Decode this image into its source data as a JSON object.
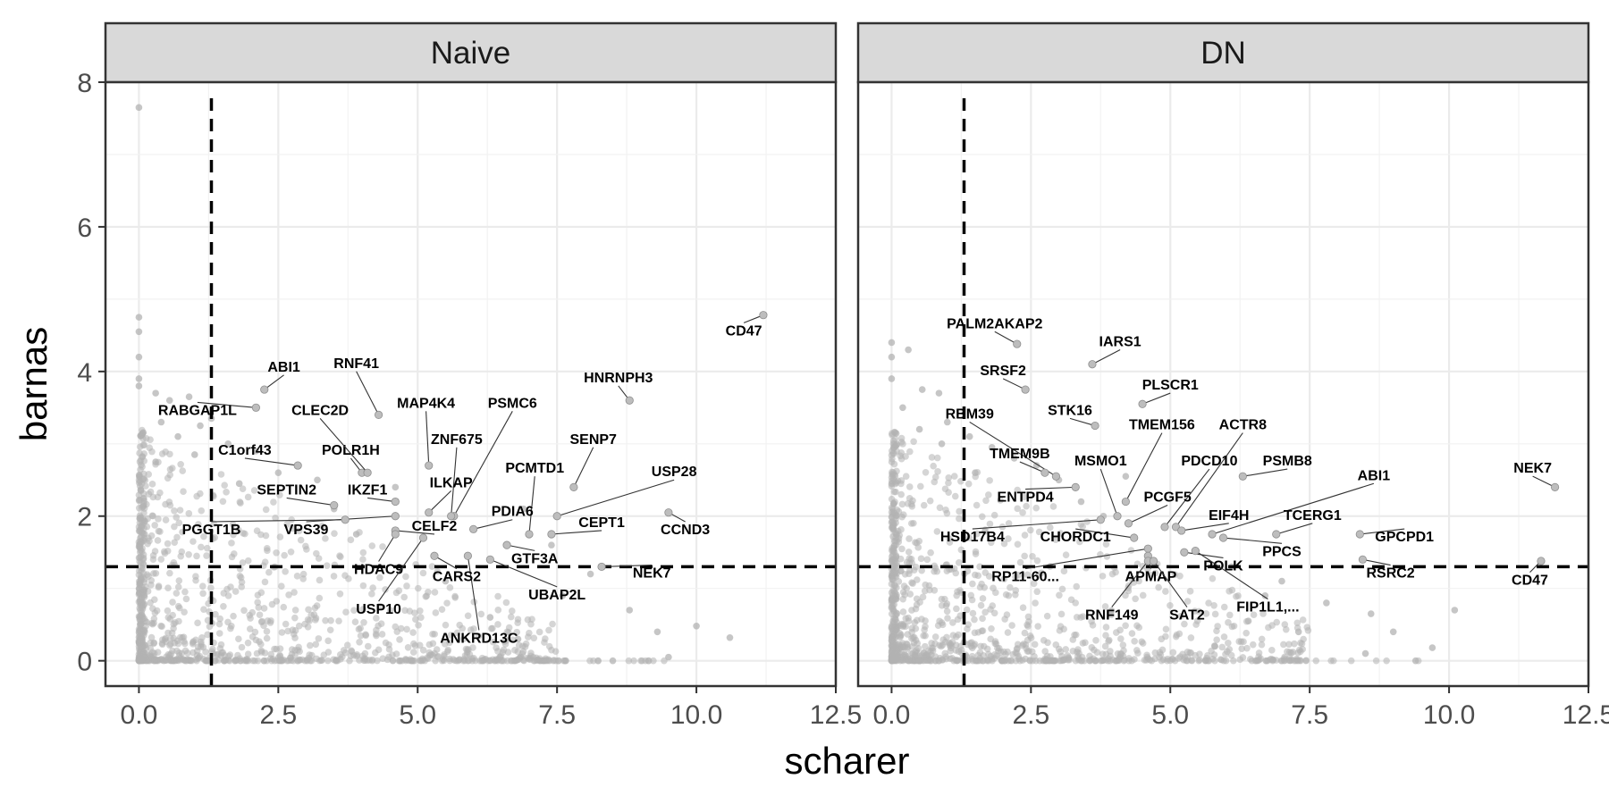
{
  "chart_data": {
    "type": "scatter",
    "xlabel": "scharer",
    "ylabel": "barnas",
    "xlim": [
      -0.6,
      12.5
    ],
    "ylim": [
      -0.35,
      8.0
    ],
    "x_ticks": [
      0.0,
      2.5,
      5.0,
      7.5,
      10.0,
      12.5
    ],
    "x_tick_labels": [
      "0.0",
      "2.5",
      "5.0",
      "7.5",
      "10.0",
      "12.5"
    ],
    "y_ticks": [
      0,
      2,
      4,
      6,
      8
    ],
    "y_tick_labels": [
      "0",
      "2",
      "4",
      "6",
      "8"
    ],
    "threshold_x": 1.3,
    "threshold_y": 1.3,
    "grid": true,
    "point_color": "#b3b3b3",
    "label_color": "#000000",
    "panels": [
      {
        "title": "Naive",
        "points": [
          {
            "x": 0.0,
            "y": 7.65
          },
          {
            "x": 0.0,
            "y": 4.75
          },
          {
            "x": 0.0,
            "y": 4.55
          },
          {
            "x": 0.0,
            "y": 4.2
          },
          {
            "x": 0.0,
            "y": 3.9
          },
          {
            "x": 0.0,
            "y": 3.8
          },
          {
            "x": 0.3,
            "y": 3.7
          },
          {
            "x": 0.55,
            "y": 3.6
          },
          {
            "x": 0.9,
            "y": 3.65
          },
          {
            "x": 0.4,
            "y": 3.3
          },
          {
            "x": 1.1,
            "y": 3.25
          },
          {
            "x": 1.3,
            "y": 3.35
          },
          {
            "x": 0.7,
            "y": 3.1
          },
          {
            "x": 1.6,
            "y": 3.0
          },
          {
            "x": 1.0,
            "y": 2.85
          },
          {
            "x": 0.3,
            "y": 2.75
          },
          {
            "x": 2.1,
            "y": 2.9
          },
          {
            "x": 2.5,
            "y": 2.6
          },
          {
            "x": 1.8,
            "y": 2.45
          },
          {
            "x": 3.2,
            "y": 2.5
          },
          {
            "x": 3.5,
            "y": 2.1
          },
          {
            "x": 4.6,
            "y": 2.4
          },
          {
            "x": 3.9,
            "y": 1.75
          },
          {
            "x": 6.9,
            "y": 2.1
          },
          {
            "x": 7.4,
            "y": 1.6
          },
          {
            "x": 8.1,
            "y": 1.2
          },
          {
            "x": 8.8,
            "y": 0.7
          },
          {
            "x": 9.3,
            "y": 0.4
          },
          {
            "x": 10.0,
            "y": 0.48
          },
          {
            "x": 10.6,
            "y": 0.32
          },
          {
            "x": 9.5,
            "y": 0.05
          },
          {
            "x": 8.5,
            "y": 0.0
          },
          {
            "x": 6.8,
            "y": 0.3
          },
          {
            "x": 7.6,
            "y": 0.9
          },
          {
            "x": 5.5,
            "y": 1.1
          },
          {
            "x": 6.3,
            "y": 0.6
          }
        ],
        "labels": [
          {
            "text": "CD47",
            "x": 11.2,
            "y": 4.78,
            "lx": 10.85,
            "ly": 4.5
          },
          {
            "text": "HNRNPH3",
            "x": 8.8,
            "y": 3.6,
            "lx": 8.6,
            "ly": 3.85
          },
          {
            "text": "SENP7",
            "x": 7.8,
            "y": 2.4,
            "lx": 8.15,
            "ly": 3.0
          },
          {
            "text": "USP28",
            "x": 7.5,
            "y": 2.0,
            "lx": 9.6,
            "ly": 2.55
          },
          {
            "text": "CCND3",
            "x": 9.5,
            "y": 2.05,
            "lx": 9.8,
            "ly": 1.75
          },
          {
            "text": "CEPT1",
            "x": 7.4,
            "y": 1.75,
            "lx": 8.3,
            "ly": 1.85
          },
          {
            "text": "NEK7",
            "x": 8.3,
            "y": 1.3,
            "lx": 9.2,
            "ly": 1.15
          },
          {
            "text": "PCMTD1",
            "x": 7.0,
            "y": 1.75,
            "lx": 7.1,
            "ly": 2.6
          },
          {
            "text": "PDIA6",
            "x": 6.0,
            "y": 1.82,
            "lx": 6.7,
            "ly": 2.0
          },
          {
            "text": "GTF3A",
            "x": 6.6,
            "y": 1.6,
            "lx": 7.1,
            "ly": 1.35
          },
          {
            "text": "UBAP2L",
            "x": 6.3,
            "y": 1.4,
            "lx": 7.5,
            "ly": 0.85
          },
          {
            "text": "ANKRD13C",
            "x": 5.9,
            "y": 1.45,
            "lx": 6.1,
            "ly": 0.25
          },
          {
            "text": "CARS2",
            "x": 5.3,
            "y": 1.45,
            "lx": 5.7,
            "ly": 1.1
          },
          {
            "text": "PSMC6",
            "x": 5.65,
            "y": 2.0,
            "lx": 6.7,
            "ly": 3.5
          },
          {
            "text": "ZNF675",
            "x": 5.6,
            "y": 2.0,
            "lx": 5.7,
            "ly": 3.0
          },
          {
            "text": "MAP4K4",
            "x": 5.2,
            "y": 2.7,
            "lx": 5.15,
            "ly": 3.5
          },
          {
            "text": "RNF41",
            "x": 4.3,
            "y": 3.4,
            "lx": 3.9,
            "ly": 4.05
          },
          {
            "text": "ILKAP",
            "x": 5.2,
            "y": 2.05,
            "lx": 5.6,
            "ly": 2.4
          },
          {
            "text": "CELF2",
            "x": 4.6,
            "y": 1.8,
            "lx": 5.3,
            "ly": 1.8
          },
          {
            "text": "HDAC9",
            "x": 4.6,
            "y": 1.75,
            "lx": 4.3,
            "ly": 1.2
          },
          {
            "text": "USP10",
            "x": 5.1,
            "y": 1.7,
            "lx": 4.3,
            "ly": 0.65
          },
          {
            "text": "POLR1H",
            "x": 4.0,
            "y": 2.6,
            "lx": 3.8,
            "ly": 2.85
          },
          {
            "text": "CLEC2D",
            "x": 4.1,
            "y": 2.6,
            "lx": 3.25,
            "ly": 3.4
          },
          {
            "text": "IKZF1",
            "x": 4.6,
            "y": 2.2,
            "lx": 4.1,
            "ly": 2.3
          },
          {
            "text": "SEPTIN2",
            "x": 3.5,
            "y": 2.15,
            "lx": 2.65,
            "ly": 2.3
          },
          {
            "text": "VPS39",
            "x": 4.6,
            "y": 2.0,
            "lx": 3.0,
            "ly": 1.75
          },
          {
            "text": "PGGT1B",
            "x": 3.7,
            "y": 1.95,
            "lx": 1.3,
            "ly": 1.75
          },
          {
            "text": "C1orf43",
            "x": 2.85,
            "y": 2.7,
            "lx": 1.9,
            "ly": 2.85
          },
          {
            "text": "ABI1",
            "x": 2.25,
            "y": 3.75,
            "lx": 2.6,
            "ly": 4.0
          },
          {
            "text": "RABGAP1L",
            "x": 2.1,
            "y": 3.5,
            "lx": 1.05,
            "ly": 3.4
          }
        ]
      },
      {
        "title": "DN",
        "points": [
          {
            "x": 0.0,
            "y": 4.4
          },
          {
            "x": 0.0,
            "y": 4.2
          },
          {
            "x": 0.3,
            "y": 4.3
          },
          {
            "x": 0.0,
            "y": 3.9
          },
          {
            "x": 0.55,
            "y": 3.75
          },
          {
            "x": 0.85,
            "y": 3.7
          },
          {
            "x": 0.2,
            "y": 3.5
          },
          {
            "x": 1.0,
            "y": 3.3
          },
          {
            "x": 0.5,
            "y": 3.2
          },
          {
            "x": 1.4,
            "y": 3.1
          },
          {
            "x": 0.9,
            "y": 3.0
          },
          {
            "x": 1.8,
            "y": 2.95
          },
          {
            "x": 2.2,
            "y": 2.8
          },
          {
            "x": 1.5,
            "y": 2.6
          },
          {
            "x": 2.6,
            "y": 2.7
          },
          {
            "x": 3.0,
            "y": 2.5
          },
          {
            "x": 3.4,
            "y": 2.2
          },
          {
            "x": 4.2,
            "y": 2.55
          },
          {
            "x": 3.8,
            "y": 2.0
          },
          {
            "x": 6.1,
            "y": 1.3
          },
          {
            "x": 7.0,
            "y": 1.1
          },
          {
            "x": 7.8,
            "y": 0.8
          },
          {
            "x": 8.6,
            "y": 0.65
          },
          {
            "x": 9.0,
            "y": 0.4
          },
          {
            "x": 9.7,
            "y": 0.18
          },
          {
            "x": 10.1,
            "y": 0.7
          },
          {
            "x": 9.4,
            "y": 0.0
          },
          {
            "x": 8.5,
            "y": 0.1
          },
          {
            "x": 7.3,
            "y": 0.4
          },
          {
            "x": 6.7,
            "y": 0.9
          },
          {
            "x": 5.8,
            "y": 0.2
          },
          {
            "x": 6.4,
            "y": 0.55
          }
        ],
        "labels": [
          {
            "text": "PALM2AKAP2",
            "x": 2.25,
            "y": 4.38,
            "lx": 1.85,
            "ly": 4.6
          },
          {
            "text": "IARS1",
            "x": 3.6,
            "y": 4.1,
            "lx": 4.1,
            "ly": 4.35
          },
          {
            "text": "SRSF2",
            "x": 2.4,
            "y": 3.75,
            "lx": 2.0,
            "ly": 3.95
          },
          {
            "text": "PLSCR1",
            "x": 4.5,
            "y": 3.55,
            "lx": 5.0,
            "ly": 3.75
          },
          {
            "text": "STK16",
            "x": 3.65,
            "y": 3.25,
            "lx": 3.2,
            "ly": 3.4
          },
          {
            "text": "RBM39",
            "x": 2.95,
            "y": 2.55,
            "lx": 1.4,
            "ly": 3.35
          },
          {
            "text": "TMEM156",
            "x": 4.2,
            "y": 2.2,
            "lx": 4.85,
            "ly": 3.2
          },
          {
            "text": "ACTR8",
            "x": 5.1,
            "y": 1.85,
            "lx": 6.3,
            "ly": 3.2
          },
          {
            "text": "TMEM9B",
            "x": 2.75,
            "y": 2.6,
            "lx": 2.3,
            "ly": 2.8
          },
          {
            "text": "MSMO1",
            "x": 4.05,
            "y": 2.0,
            "lx": 3.75,
            "ly": 2.7
          },
          {
            "text": "PDCD10",
            "x": 4.9,
            "y": 1.85,
            "lx": 5.7,
            "ly": 2.7
          },
          {
            "text": "PSMB8",
            "x": 6.3,
            "y": 2.55,
            "lx": 7.1,
            "ly": 2.7
          },
          {
            "text": "ABI1",
            "x": 5.75,
            "y": 1.75,
            "lx": 8.65,
            "ly": 2.5
          },
          {
            "text": "NEK7",
            "x": 11.9,
            "y": 2.4,
            "lx": 11.5,
            "ly": 2.6
          },
          {
            "text": "ENTPD4",
            "x": 3.3,
            "y": 2.4,
            "lx": 2.4,
            "ly": 2.2
          },
          {
            "text": "PCGF5",
            "x": 4.25,
            "y": 1.9,
            "lx": 4.95,
            "ly": 2.2
          },
          {
            "text": "EIF4H",
            "x": 5.2,
            "y": 1.8,
            "lx": 6.05,
            "ly": 1.95
          },
          {
            "text": "TCERG1",
            "x": 6.9,
            "y": 1.75,
            "lx": 7.55,
            "ly": 1.95
          },
          {
            "text": "HSD17B4",
            "x": 3.75,
            "y": 1.95,
            "lx": 1.45,
            "ly": 1.65
          },
          {
            "text": "CHORDC1",
            "x": 4.35,
            "y": 1.7,
            "lx": 3.3,
            "ly": 1.65
          },
          {
            "text": "GPCPD1",
            "x": 8.4,
            "y": 1.75,
            "lx": 9.2,
            "ly": 1.65
          },
          {
            "text": "PPCS",
            "x": 5.95,
            "y": 1.7,
            "lx": 7.0,
            "ly": 1.45
          },
          {
            "text": "RP11-60...",
            "x": 4.6,
            "y": 1.55,
            "lx": 2.4,
            "ly": 1.1
          },
          {
            "text": "POLK",
            "x": 5.25,
            "y": 1.5,
            "lx": 5.95,
            "ly": 1.25
          },
          {
            "text": "APMAP",
            "x": 4.6,
            "y": 1.45,
            "lx": 4.65,
            "ly": 1.1
          },
          {
            "text": "RSRC2",
            "x": 8.45,
            "y": 1.4,
            "lx": 8.95,
            "ly": 1.15
          },
          {
            "text": "CD47",
            "x": 11.65,
            "y": 1.38,
            "lx": 11.45,
            "ly": 1.05
          },
          {
            "text": "RNF149",
            "x": 4.6,
            "y": 1.38,
            "lx": 3.95,
            "ly": 0.57
          },
          {
            "text": "SAT2",
            "x": 4.7,
            "y": 1.38,
            "lx": 5.3,
            "ly": 0.57
          },
          {
            "text": "FIP1L1,...",
            "x": 5.45,
            "y": 1.52,
            "lx": 6.75,
            "ly": 0.68
          }
        ]
      }
    ]
  }
}
